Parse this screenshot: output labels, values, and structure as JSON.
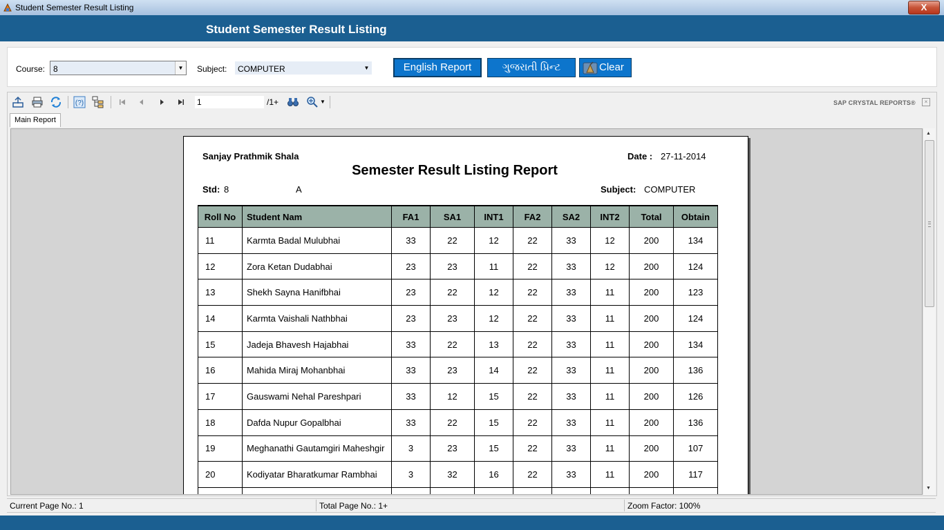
{
  "window": {
    "title": "Student Semester Result Listing",
    "close_glyph": "X"
  },
  "header": {
    "title": "Student Semester Result Listing"
  },
  "filters": {
    "course_label": "Course:",
    "course_value": "8",
    "subject_label": "Subject:",
    "subject_value": "COMPUTER",
    "english_report_label": "English Report",
    "gujarati_print_label": "ગુજરાતી પ્રિન્ટ",
    "clear_label": "Clear"
  },
  "viewer": {
    "page_input": "1",
    "page_total": "/1+",
    "brand": "SAP CRYSTAL REPORTS®",
    "tab_label": "Main Report"
  },
  "report": {
    "school": "Sanjay Prathmik Shala",
    "date_label": "Date :",
    "date_value": "27-11-2014",
    "title": "Semester Result Listing Report",
    "std_label": "Std:",
    "std_value": "8",
    "division": "A",
    "subject_label": "Subject:",
    "subject_value": "COMPUTER",
    "columns": [
      "Roll No",
      "Student Nam",
      "FA1",
      "SA1",
      "INT1",
      "FA2",
      "SA2",
      "INT2",
      "Total",
      "Obtain"
    ],
    "rows": [
      [
        "11",
        "Karmta Badal Mulubhai",
        "33",
        "22",
        "12",
        "22",
        "33",
        "12",
        "200",
        "134"
      ],
      [
        "12",
        "Zora Ketan Dudabhai",
        "23",
        "23",
        "11",
        "22",
        "33",
        "12",
        "200",
        "124"
      ],
      [
        "13",
        "Shekh Sayna Hanifbhai",
        "23",
        "22",
        "12",
        "22",
        "33",
        "11",
        "200",
        "123"
      ],
      [
        "14",
        "Karmta Vaishali Nathbhai",
        "23",
        "23",
        "12",
        "22",
        "33",
        "11",
        "200",
        "124"
      ],
      [
        "15",
        "Jadeja Bhavesh Hajabhai",
        "33",
        "22",
        "13",
        "22",
        "33",
        "11",
        "200",
        "134"
      ],
      [
        "16",
        "Mahida Miraj Mohanbhai",
        "33",
        "23",
        "14",
        "22",
        "33",
        "11",
        "200",
        "136"
      ],
      [
        "17",
        "Gauswami Nehal Pareshpari",
        "33",
        "12",
        "15",
        "22",
        "33",
        "11",
        "200",
        "126"
      ],
      [
        "18",
        "Dafda Nupur Gopalbhai",
        "33",
        "22",
        "15",
        "22",
        "33",
        "11",
        "200",
        "136"
      ],
      [
        "19",
        "Meghanathi Gautamgiri Maheshgir",
        "3",
        "23",
        "15",
        "22",
        "33",
        "11",
        "200",
        "107"
      ],
      [
        "20",
        "Kodiyatar Bharatkumar Rambhai",
        "3",
        "32",
        "16",
        "22",
        "33",
        "11",
        "200",
        "117"
      ],
      [
        "",
        "",
        "",
        "",
        "",
        "",
        "",
        "",
        "",
        ""
      ]
    ]
  },
  "status": {
    "current_page": "Current Page No.: 1",
    "total_page": "Total Page No.: 1+",
    "zoom": "Zoom Factor: 100%"
  },
  "colors": {
    "header_band": "#1b5f91",
    "button_blue": "#0d75cc",
    "table_header": "#9bb2a8"
  }
}
